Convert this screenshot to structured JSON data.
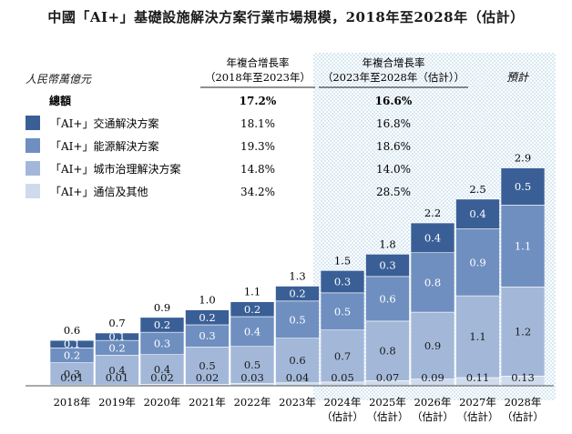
{
  "title": "中國「AI+」基礎設施解決方案行業市場規模，2018年至2028年（估計）",
  "unit_label": "人民幣萬億元",
  "forecast_label": "預計",
  "cagr_table": {
    "header_1": [
      "年複合增長率",
      "（2018年至2023年）"
    ],
    "header_2": [
      "年複合增長率",
      "（2023年至2028年（估計））"
    ],
    "rows": [
      {
        "label": "總額",
        "bold": true,
        "color": "",
        "v1": "17.2%",
        "v2": "16.6%"
      },
      {
        "label": "「AI+」交通解決方案",
        "bold": false,
        "color": "#3a5f96",
        "v1": "18.1%",
        "v2": "16.8%"
      },
      {
        "label": "「AI+」能源解決方案",
        "bold": false,
        "color": "#6f8fc0",
        "v1": "19.3%",
        "v2": "18.6%"
      },
      {
        "label": "「AI+」城市治理解決方案",
        "bold": false,
        "color": "#a3b8d9",
        "v1": "14.8%",
        "v2": "14.0%"
      },
      {
        "label": "「AI+」通信及其他",
        "bold": false,
        "color": "#cfdbec",
        "v1": "34.2%",
        "v2": "28.5%"
      }
    ]
  },
  "chart_data": {
    "type": "bar",
    "stacked": true,
    "categories": [
      [
        "2018年"
      ],
      [
        "2019年"
      ],
      [
        "2020年"
      ],
      [
        "2021年"
      ],
      [
        "2022年"
      ],
      [
        "2023年"
      ],
      [
        "2024年",
        "（估計）"
      ],
      [
        "2025年",
        "（估計）"
      ],
      [
        "2026年",
        "（估計）"
      ],
      [
        "2027年",
        "（估計）"
      ],
      [
        "2028年",
        "（估計）"
      ]
    ],
    "totals": [
      "0.6",
      "0.7",
      "0.9",
      "1.0",
      "1.1",
      "1.3",
      "1.5",
      "1.8",
      "2.2",
      "2.5",
      "2.9"
    ],
    "total_values": [
      0.6,
      0.7,
      0.9,
      1.0,
      1.1,
      1.3,
      1.5,
      1.8,
      2.2,
      2.5,
      2.9
    ],
    "series": [
      {
        "name": "「AI+」通信及其他",
        "color": "#cfdbec",
        "text_color": "#1a1a1a",
        "values": [
          0.01,
          0.01,
          0.02,
          0.02,
          0.03,
          0.04,
          0.05,
          0.07,
          0.09,
          0.11,
          0.13
        ],
        "labels": [
          "0.01",
          "0.01",
          "0.02",
          "0.02",
          "0.03",
          "0.04",
          "0.05",
          "0.07",
          "0.09",
          "0.11",
          "0.13"
        ]
      },
      {
        "name": "「AI+」城市治理解決方案",
        "color": "#a3b8d9",
        "text_color": "#1a1a1a",
        "values": [
          0.3,
          0.4,
          0.4,
          0.5,
          0.5,
          0.6,
          0.7,
          0.8,
          0.9,
          1.1,
          1.2
        ],
        "labels": [
          "0.3",
          "0.4",
          "0.4",
          "0.5",
          "0.5",
          "0.6",
          "0.7",
          "0.8",
          "0.9",
          "1.1",
          "1.2"
        ]
      },
      {
        "name": "「AI+」能源解決方案",
        "color": "#6f8fc0",
        "text_color": "#ffffff",
        "values": [
          0.2,
          0.2,
          0.3,
          0.3,
          0.4,
          0.5,
          0.5,
          0.6,
          0.8,
          0.9,
          1.1
        ],
        "labels": [
          "0.2",
          "0.2",
          "0.3",
          "0.3",
          "0.4",
          "0.5",
          "0.5",
          "0.6",
          "0.8",
          "0.9",
          "1.1"
        ]
      },
      {
        "name": "「AI+」交通解決方案",
        "color": "#3a5f96",
        "text_color": "#ffffff",
        "values": [
          0.1,
          0.1,
          0.2,
          0.2,
          0.2,
          0.2,
          0.3,
          0.3,
          0.4,
          0.4,
          0.5
        ],
        "labels": [
          "0.1",
          "0.1",
          "0.2",
          "0.2",
          "0.2",
          "0.2",
          "0.3",
          "0.3",
          "0.4",
          "0.4",
          "0.5"
        ]
      }
    ],
    "forecast_start_index": 6,
    "ylim": [
      0,
      2.9
    ],
    "grid": false,
    "legend": "top-left"
  }
}
